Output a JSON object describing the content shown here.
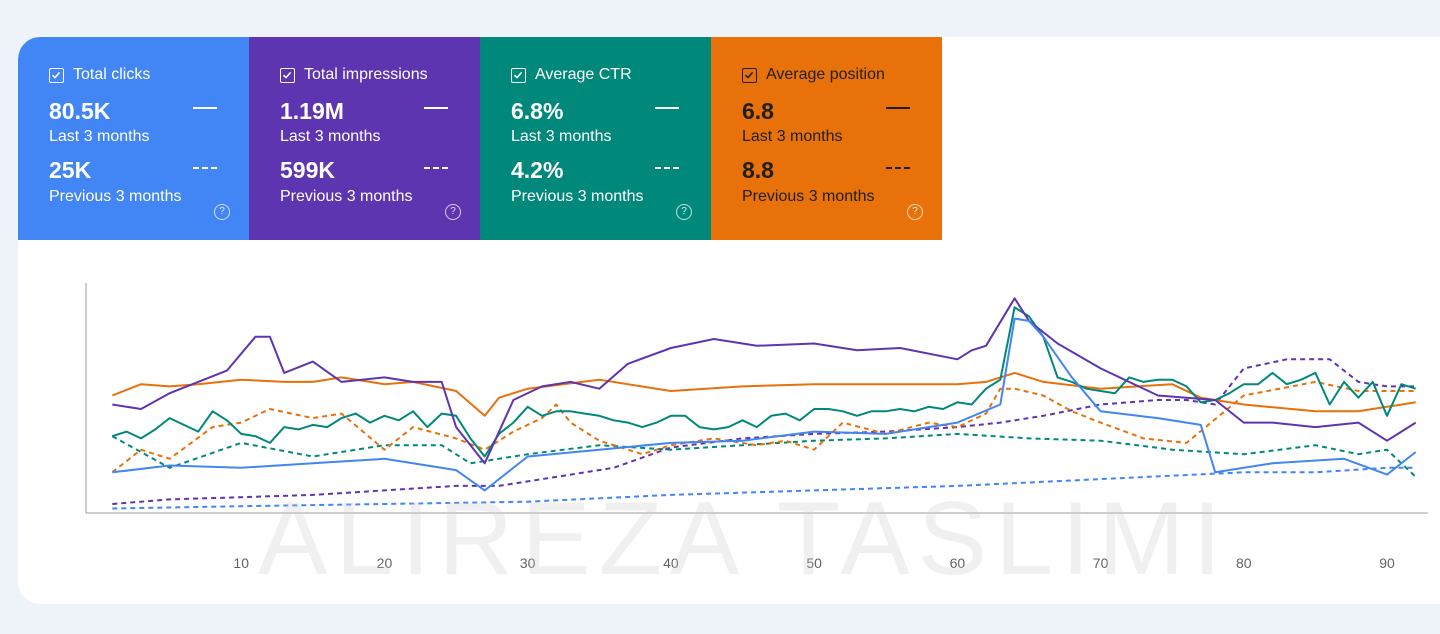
{
  "metrics": [
    {
      "label": "Total clicks",
      "current": "80.5K",
      "current_period": "Last 3 months",
      "previous": "25K",
      "previous_period": "Previous 3 months",
      "color": "#4285f4"
    },
    {
      "label": "Total impressions",
      "current": "1.19M",
      "current_period": "Last 3 months",
      "previous": "599K",
      "previous_period": "Previous 3 months",
      "color": "#5e35b1"
    },
    {
      "label": "Average CTR",
      "current": "6.8%",
      "current_period": "Last 3 months",
      "previous": "4.2%",
      "previous_period": "Previous 3 months",
      "color": "#00897b"
    },
    {
      "label": "Average position",
      "current": "6.8",
      "current_period": "Last 3 months",
      "previous": "8.8",
      "previous_period": "Previous 3 months",
      "color": "#e8710a"
    }
  ],
  "help_glyph": "?",
  "watermark": "ALIREZA TASLIMI",
  "chart_data": {
    "type": "line",
    "x_ticks": [
      10,
      20,
      30,
      40,
      50,
      60,
      70,
      80,
      90
    ],
    "xlim": [
      0,
      93
    ],
    "ylim": [
      0,
      100
    ],
    "series": [
      {
        "key": "clicks_current",
        "color": "#4285f4",
        "dashed": false,
        "x": [
          1,
          5,
          10,
          15,
          20,
          25,
          27,
          30,
          35,
          40,
          45,
          50,
          55,
          60,
          63,
          64,
          65,
          66,
          68,
          70,
          74,
          77,
          78,
          82,
          87,
          90,
          92
        ],
        "y": [
          18,
          21,
          20,
          22,
          24,
          19,
          10,
          25,
          28,
          31,
          32,
          36,
          35,
          40,
          48,
          86,
          85,
          78,
          60,
          45,
          42,
          39,
          18,
          22,
          24,
          17,
          27
        ]
      },
      {
        "key": "clicks_previous",
        "color": "#4285f4",
        "dashed": true,
        "x": [
          1,
          10,
          20,
          30,
          40,
          50,
          60,
          70,
          80,
          85,
          90,
          92
        ],
        "y": [
          2,
          3,
          4,
          5,
          8,
          10,
          12,
          15,
          18,
          18,
          20,
          20
        ]
      },
      {
        "key": "impressions_current",
        "color": "#5e35b1",
        "dashed": false,
        "x": [
          1,
          3,
          5,
          9,
          11,
          12,
          13,
          15,
          17,
          20,
          22,
          24,
          25,
          27,
          29,
          31,
          33,
          35,
          37,
          40,
          43,
          46,
          50,
          53,
          56,
          60,
          61,
          62,
          64,
          65,
          67,
          70,
          74,
          76,
          78,
          80,
          82,
          85,
          88,
          90,
          92
        ],
        "y": [
          48,
          46,
          53,
          63,
          78,
          78,
          62,
          67,
          58,
          60,
          58,
          58,
          38,
          22,
          50,
          56,
          58,
          55,
          66,
          73,
          77,
          74,
          75,
          72,
          73,
          68,
          72,
          74,
          95,
          85,
          75,
          64,
          52,
          51,
          50,
          40,
          40,
          38,
          40,
          32,
          40
        ]
      },
      {
        "key": "impressions_previous",
        "color": "#5e35b1",
        "dashed": true,
        "x": [
          1,
          5,
          10,
          15,
          20,
          25,
          28,
          30,
          33,
          36,
          40,
          45,
          50,
          55,
          60,
          63,
          66,
          70,
          74,
          76,
          78,
          80,
          83,
          86,
          88,
          90,
          92
        ],
        "y": [
          4,
          6,
          7,
          8,
          10,
          12,
          12,
          14,
          17,
          20,
          29,
          33,
          35,
          36,
          38,
          40,
          43,
          48,
          50,
          50,
          48,
          64,
          68,
          68,
          58,
          56,
          56
        ]
      },
      {
        "key": "ctr_current",
        "color": "#00897b",
        "dashed": false,
        "x": [
          1,
          2,
          3,
          4,
          5,
          6,
          7,
          8,
          9,
          10,
          11,
          12,
          13,
          14,
          15,
          16,
          17,
          18,
          19,
          20,
          21,
          22,
          23,
          24,
          25,
          26,
          27,
          28,
          29,
          30,
          31,
          32,
          33,
          34,
          35,
          36,
          37,
          38,
          39,
          40,
          41,
          42,
          43,
          44,
          45,
          46,
          47,
          48,
          49,
          50,
          51,
          52,
          53,
          54,
          55,
          56,
          57,
          58,
          59,
          60,
          61,
          62,
          63,
          64,
          65,
          66,
          67,
          68,
          69,
          70,
          71,
          72,
          73,
          74,
          75,
          76,
          77,
          78,
          79,
          80,
          81,
          82,
          83,
          84,
          85,
          86,
          87,
          88,
          89,
          90,
          91,
          92
        ],
        "y": [
          34,
          36,
          33,
          37,
          42,
          39,
          36,
          45,
          41,
          35,
          34,
          31,
          38,
          37,
          39,
          38,
          42,
          44,
          40,
          43,
          41,
          45,
          38,
          44,
          43,
          33,
          25,
          35,
          40,
          47,
          43,
          45,
          45,
          44,
          43,
          41,
          40,
          38,
          40,
          43,
          43,
          38,
          37,
          38,
          41,
          38,
          43,
          44,
          41,
          46,
          46,
          45,
          43,
          45,
          45,
          46,
          45,
          47,
          46,
          49,
          48,
          55,
          59,
          91,
          87,
          78,
          60,
          58,
          55,
          54,
          53,
          60,
          58,
          59,
          59,
          56,
          49,
          50,
          53,
          57,
          57,
          62,
          57,
          59,
          62,
          48,
          58,
          51,
          58,
          43,
          57,
          55
        ]
      },
      {
        "key": "ctr_previous",
        "color": "#00897b",
        "dashed": true,
        "x": [
          1,
          5,
          10,
          15,
          20,
          24,
          26,
          30,
          35,
          40,
          45,
          50,
          55,
          60,
          65,
          70,
          75,
          80,
          85,
          88,
          90,
          92
        ],
        "y": [
          34,
          20,
          31,
          25,
          30,
          30,
          22,
          26,
          30,
          28,
          30,
          32,
          33,
          35,
          33,
          32,
          28,
          26,
          30,
          26,
          28,
          16
        ]
      },
      {
        "key": "position_current",
        "color": "#e8710a",
        "dashed": false,
        "x": [
          1,
          3,
          5,
          7,
          10,
          13,
          15,
          17,
          19,
          20,
          22,
          25,
          27,
          28,
          30,
          35,
          40,
          45,
          50,
          55,
          60,
          62,
          64,
          66,
          70,
          75,
          77,
          80,
          85,
          88,
          90,
          92
        ],
        "y": [
          52,
          57,
          56,
          57,
          59,
          58,
          58,
          60,
          58,
          57,
          58,
          54,
          43,
          51,
          55,
          59,
          54,
          56,
          57,
          57,
          57,
          58,
          62,
          58,
          55,
          57,
          51,
          48,
          45,
          45,
          47,
          49
        ]
      },
      {
        "key": "position_previous",
        "color": "#e8710a",
        "dashed": true,
        "x": [
          1,
          3,
          5,
          8,
          10,
          12,
          15,
          17,
          20,
          22,
          25,
          27,
          29,
          31,
          32,
          33,
          35,
          38,
          40,
          43,
          46,
          48,
          50,
          52,
          55,
          58,
          60,
          62,
          63,
          64,
          66,
          68,
          70,
          73,
          76,
          80,
          85,
          88,
          90,
          92
        ],
        "y": [
          18,
          28,
          24,
          38,
          40,
          46,
          42,
          44,
          28,
          38,
          33,
          28,
          36,
          42,
          48,
          40,
          32,
          26,
          30,
          33,
          30,
          32,
          28,
          40,
          35,
          40,
          38,
          44,
          55,
          55,
          52,
          45,
          40,
          33,
          31,
          52,
          58,
          54,
          54,
          54
        ]
      }
    ]
  }
}
